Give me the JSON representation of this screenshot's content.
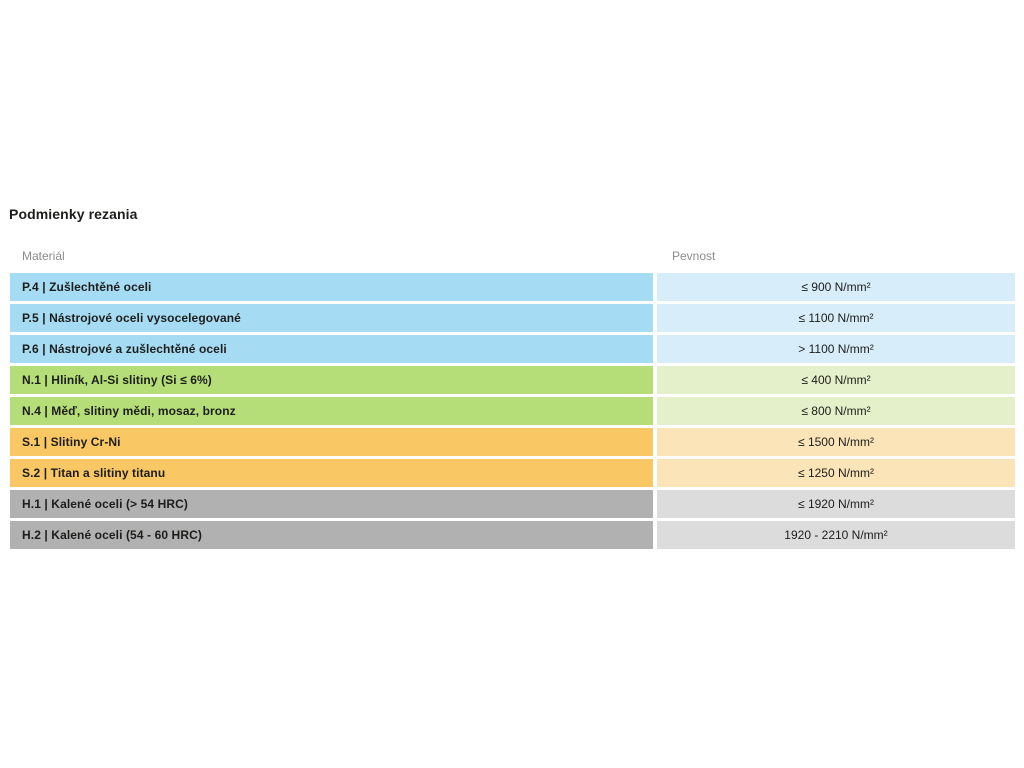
{
  "title": "Podmienky rezania",
  "table": {
    "headers": [
      "Materiál",
      "Pevnost"
    ],
    "rows": [
      {
        "material": "P.4 | Zušlechtěné oceli",
        "strength": "≤ 900 N/mm²",
        "group": "blue"
      },
      {
        "material": "P.5 | Nástrojové oceli vysocelegované",
        "strength": "≤ 1100 N/mm²",
        "group": "blue"
      },
      {
        "material": "P.6 | Nástrojové a zušlechtěné oceli",
        "strength": "> 1100 N/mm²",
        "group": "blue"
      },
      {
        "material": "N.1 | Hliník, Al-Si slitiny (Si ≤ 6%)",
        "strength": "≤ 400 N/mm²",
        "group": "green"
      },
      {
        "material": "N.4 | Měď, slitiny mědi, mosaz, bronz",
        "strength": "≤ 800 N/mm²",
        "group": "green"
      },
      {
        "material": "S.1 | Slitiny Cr-Ni",
        "strength": "≤ 1500 N/mm²",
        "group": "orange"
      },
      {
        "material": "S.2 | Titan a slitiny titanu",
        "strength": "≤ 1250 N/mm²",
        "group": "orange"
      },
      {
        "material": "H.1 | Kalené oceli (> 54 HRC)",
        "strength": "≤ 1920 N/mm²",
        "group": "gray"
      },
      {
        "material": "H.2 | Kalené oceli (54 - 60 HRC)",
        "strength": "1920 - 2210 N/mm²",
        "group": "gray"
      }
    ]
  },
  "colors": {
    "blue": {
      "material": "#A5DCF4",
      "strength": "#D7EDFA"
    },
    "green": {
      "material": "#B5DD78",
      "strength": "#E4F0C9"
    },
    "orange": {
      "material": "#F9C763",
      "strength": "#FBE4B8"
    },
    "gray": {
      "material": "#B1B1B1",
      "strength": "#DCDCDC"
    },
    "text": "#1d1d1b",
    "header_text": "#8b8b8b",
    "background": "#ffffff"
  }
}
